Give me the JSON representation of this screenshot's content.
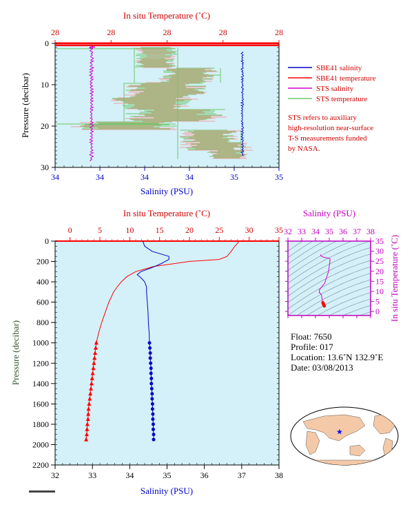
{
  "colors": {
    "plot_bg": "#d4f0f8",
    "salinity": "#0000c8",
    "temperature": "#ff0000",
    "sts_salinity": "#d000d0",
    "sts_temperature": "#6ac86a",
    "sts_temp_alt": "#f0a0a0",
    "pressure_axis": "#2a5a2a",
    "ts_axis": "#c000c0",
    "ts_grid": "#7a8a9a"
  },
  "chart_data": [
    {
      "id": "top",
      "type": "line",
      "title_top_axis": "In situ Temperature (˚C)",
      "xlabel": "Salinity (PSU)",
      "ylabel": "Pressure (decibar)",
      "top_ticks": [
        "28",
        "28",
        "28",
        "28",
        "28"
      ],
      "bottom_ticks": [
        "34",
        "34",
        "34",
        "34",
        "35",
        "35"
      ],
      "y_ticks": [
        "0",
        "10",
        "20",
        "30"
      ],
      "ylim": [
        0,
        30
      ],
      "legend": [
        {
          "label": "SBE41 salinity",
          "color_key": "salinity"
        },
        {
          "label": "SBE41 temperature",
          "color_key": "temperature"
        },
        {
          "label": "STS salinity",
          "color_key": "sts_salinity"
        },
        {
          "label": "STS temperature",
          "color_key": "sts_temperature"
        }
      ],
      "note_lines": [
        "STS refers to auxiliary",
        "high-resolution near-surface",
        "T-S measurements funded",
        "by NASA."
      ]
    },
    {
      "id": "main",
      "type": "line",
      "title_top_axis": "In situ Temperature (˚C)",
      "xlabel": "Salinity (PSU)",
      "ylabel": "Pressure (decibar)",
      "top_ticks": [
        0,
        5,
        10,
        15,
        20,
        25,
        30,
        35
      ],
      "bottom_ticks": [
        32,
        33,
        34,
        35,
        36,
        37,
        38
      ],
      "y_ticks": [
        0,
        200,
        400,
        600,
        800,
        1000,
        1200,
        1400,
        1600,
        1800,
        2000,
        2200
      ],
      "xlim_salinity": [
        32,
        38
      ],
      "xlim_temperature": [
        -2.5,
        35
      ],
      "ylim": [
        0,
        2200
      ],
      "temperature_profile": {
        "pressure": [
          0,
          10,
          20,
          50,
          100,
          150,
          180,
          200,
          250,
          300,
          350,
          400,
          450,
          500,
          550,
          600,
          700,
          800,
          900,
          1000
        ],
        "value": [
          28.2,
          28.2,
          28.1,
          27.6,
          27,
          26.3,
          25,
          20,
          14,
          11,
          9.5,
          8.6,
          7.9,
          7.3,
          6.9,
          6.5,
          5.9,
          5.3,
          4.8,
          4.4
        ]
      },
      "temperature_points": {
        "pressure": [
          1000,
          1050,
          1100,
          1150,
          1200,
          1250,
          1300,
          1350,
          1400,
          1450,
          1500,
          1550,
          1600,
          1650,
          1700,
          1750,
          1800,
          1850,
          1900,
          1950
        ],
        "value": [
          4.4,
          4.3,
          4.2,
          4.1,
          4,
          3.9,
          3.8,
          3.7,
          3.6,
          3.5,
          3.4,
          3.3,
          3.2,
          3.1,
          3.05,
          3,
          2.9,
          2.85,
          2.8,
          2.7
        ]
      },
      "salinity_profile": {
        "pressure": [
          0,
          50,
          100,
          150,
          180,
          220,
          260,
          300,
          330,
          360,
          380,
          400,
          450,
          500,
          600,
          700,
          800,
          900,
          1000
        ],
        "value": [
          34.35,
          34.4,
          34.6,
          35.05,
          35.05,
          34.85,
          34.6,
          34.3,
          34.2,
          34.3,
          34.35,
          34.4,
          34.45,
          34.45,
          34.47,
          34.49,
          34.5,
          34.52,
          34.53
        ]
      },
      "salinity_points": {
        "pressure": [
          1000,
          1050,
          1100,
          1150,
          1200,
          1250,
          1300,
          1350,
          1400,
          1450,
          1500,
          1550,
          1600,
          1650,
          1700,
          1750,
          1800,
          1850,
          1900,
          1950
        ],
        "value": [
          34.53,
          34.54,
          34.55,
          34.55,
          34.56,
          34.57,
          34.57,
          34.58,
          34.58,
          34.59,
          34.6,
          34.6,
          34.61,
          34.61,
          34.62,
          34.62,
          34.63,
          34.63,
          34.64,
          34.64
        ]
      }
    },
    {
      "id": "ts",
      "type": "scatter",
      "title": "Salinity (PSU)",
      "ylabel": "In situ Temperature (˚C)",
      "x_ticks": [
        32,
        33,
        34,
        35,
        36,
        37,
        38
      ],
      "y_ticks": [
        0,
        5,
        10,
        15,
        20,
        25,
        30,
        35
      ],
      "xlim": [
        32,
        38
      ],
      "ylim": [
        -2,
        35
      ]
    }
  ],
  "float_info": {
    "float": "Float: 7650",
    "profile": "Profile: 017",
    "location": "Location: 13.6˚N 132.9˚E",
    "date": "Date: 03/08/2013"
  },
  "map": {
    "marker_lat": 13.6,
    "marker_lon": 132.9
  }
}
